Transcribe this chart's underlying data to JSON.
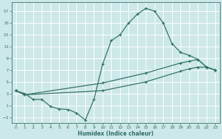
{
  "xlabel": "Humidex (Indice chaleur)",
  "bg_color": "#cde8e8",
  "grid_color": "#b8d8d8",
  "line_color": "#2e6e65",
  "xlim": [
    -0.5,
    23.5
  ],
  "ylim": [
    -2.0,
    18.5
  ],
  "xticks": [
    0,
    1,
    2,
    3,
    4,
    5,
    6,
    7,
    8,
    9,
    10,
    11,
    12,
    13,
    14,
    15,
    16,
    17,
    18,
    19,
    20,
    21,
    22,
    23
  ],
  "yticks": [
    -1,
    1,
    3,
    5,
    7,
    9,
    11,
    13,
    15,
    17
  ],
  "line1_x": [
    0,
    1,
    2,
    3,
    4,
    5,
    6,
    7,
    8,
    9,
    10,
    11,
    12,
    13,
    14,
    15,
    16,
    17,
    18,
    19,
    20,
    21,
    22,
    23
  ],
  "line1_y": [
    3.5,
    3.0,
    2.0,
    2.0,
    0.8,
    0.4,
    0.3,
    -0.3,
    -1.5,
    2.0,
    8.0,
    12.0,
    13.0,
    15.0,
    16.5,
    17.5,
    17.0,
    15.0,
    11.5,
    10.0,
    9.5,
    8.8,
    7.5,
    7.0
  ],
  "line2_x": [
    0,
    1,
    10,
    15,
    19,
    20,
    21,
    22,
    23
  ],
  "line2_y": [
    3.5,
    2.8,
    4.8,
    6.5,
    8.2,
    8.5,
    8.8,
    7.5,
    7.0
  ],
  "line3_x": [
    0,
    1,
    10,
    15,
    19,
    20,
    21,
    22,
    23
  ],
  "line3_y": [
    3.5,
    2.8,
    3.5,
    5.0,
    6.8,
    7.2,
    7.5,
    7.5,
    7.0
  ]
}
